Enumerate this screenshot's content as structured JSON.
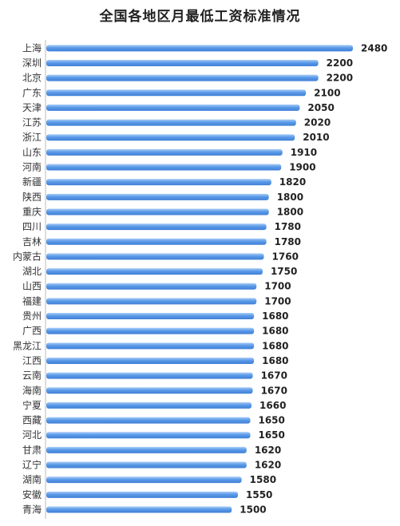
{
  "chart_data": {
    "type": "bar",
    "orientation": "horizontal",
    "title": "全国各地区月最低工资标准情况",
    "categories": [
      "上海",
      "深圳",
      "北京",
      "广东",
      "天津",
      "江苏",
      "浙江",
      "山东",
      "河南",
      "新疆",
      "陕西",
      "重庆",
      "四川",
      "吉林",
      "内蒙古",
      "湖北",
      "山西",
      "福建",
      "贵州",
      "广西",
      "黑龙江",
      "江西",
      "云南",
      "海南",
      "宁夏",
      "西藏",
      "河北",
      "甘肃",
      "辽宁",
      "湖南",
      "安徽",
      "青海"
    ],
    "values": [
      2480,
      2200,
      2200,
      2100,
      2050,
      2020,
      2010,
      1910,
      1900,
      1820,
      1800,
      1800,
      1780,
      1780,
      1760,
      1750,
      1700,
      1700,
      1680,
      1680,
      1680,
      1680,
      1670,
      1670,
      1660,
      1650,
      1650,
      1620,
      1620,
      1580,
      1550,
      1500
    ],
    "value_labels": [
      "2480",
      "2200",
      "2200",
      "2100",
      "2050",
      "2020",
      "2010",
      "1910",
      "1900",
      "1820",
      "1800",
      "1800",
      "1780",
      "1780",
      "1760",
      "1750",
      "1700",
      "1700",
      "1680",
      "1680",
      "1680",
      "1680",
      "1670",
      "1670",
      "1660",
      "1650",
      "1650",
      "1620",
      "1620",
      "1580",
      "1550",
      "1500"
    ],
    "xlim": [
      0,
      2480
    ],
    "grid": false,
    "legend": "none",
    "bar_color": "#5b9ae8"
  }
}
